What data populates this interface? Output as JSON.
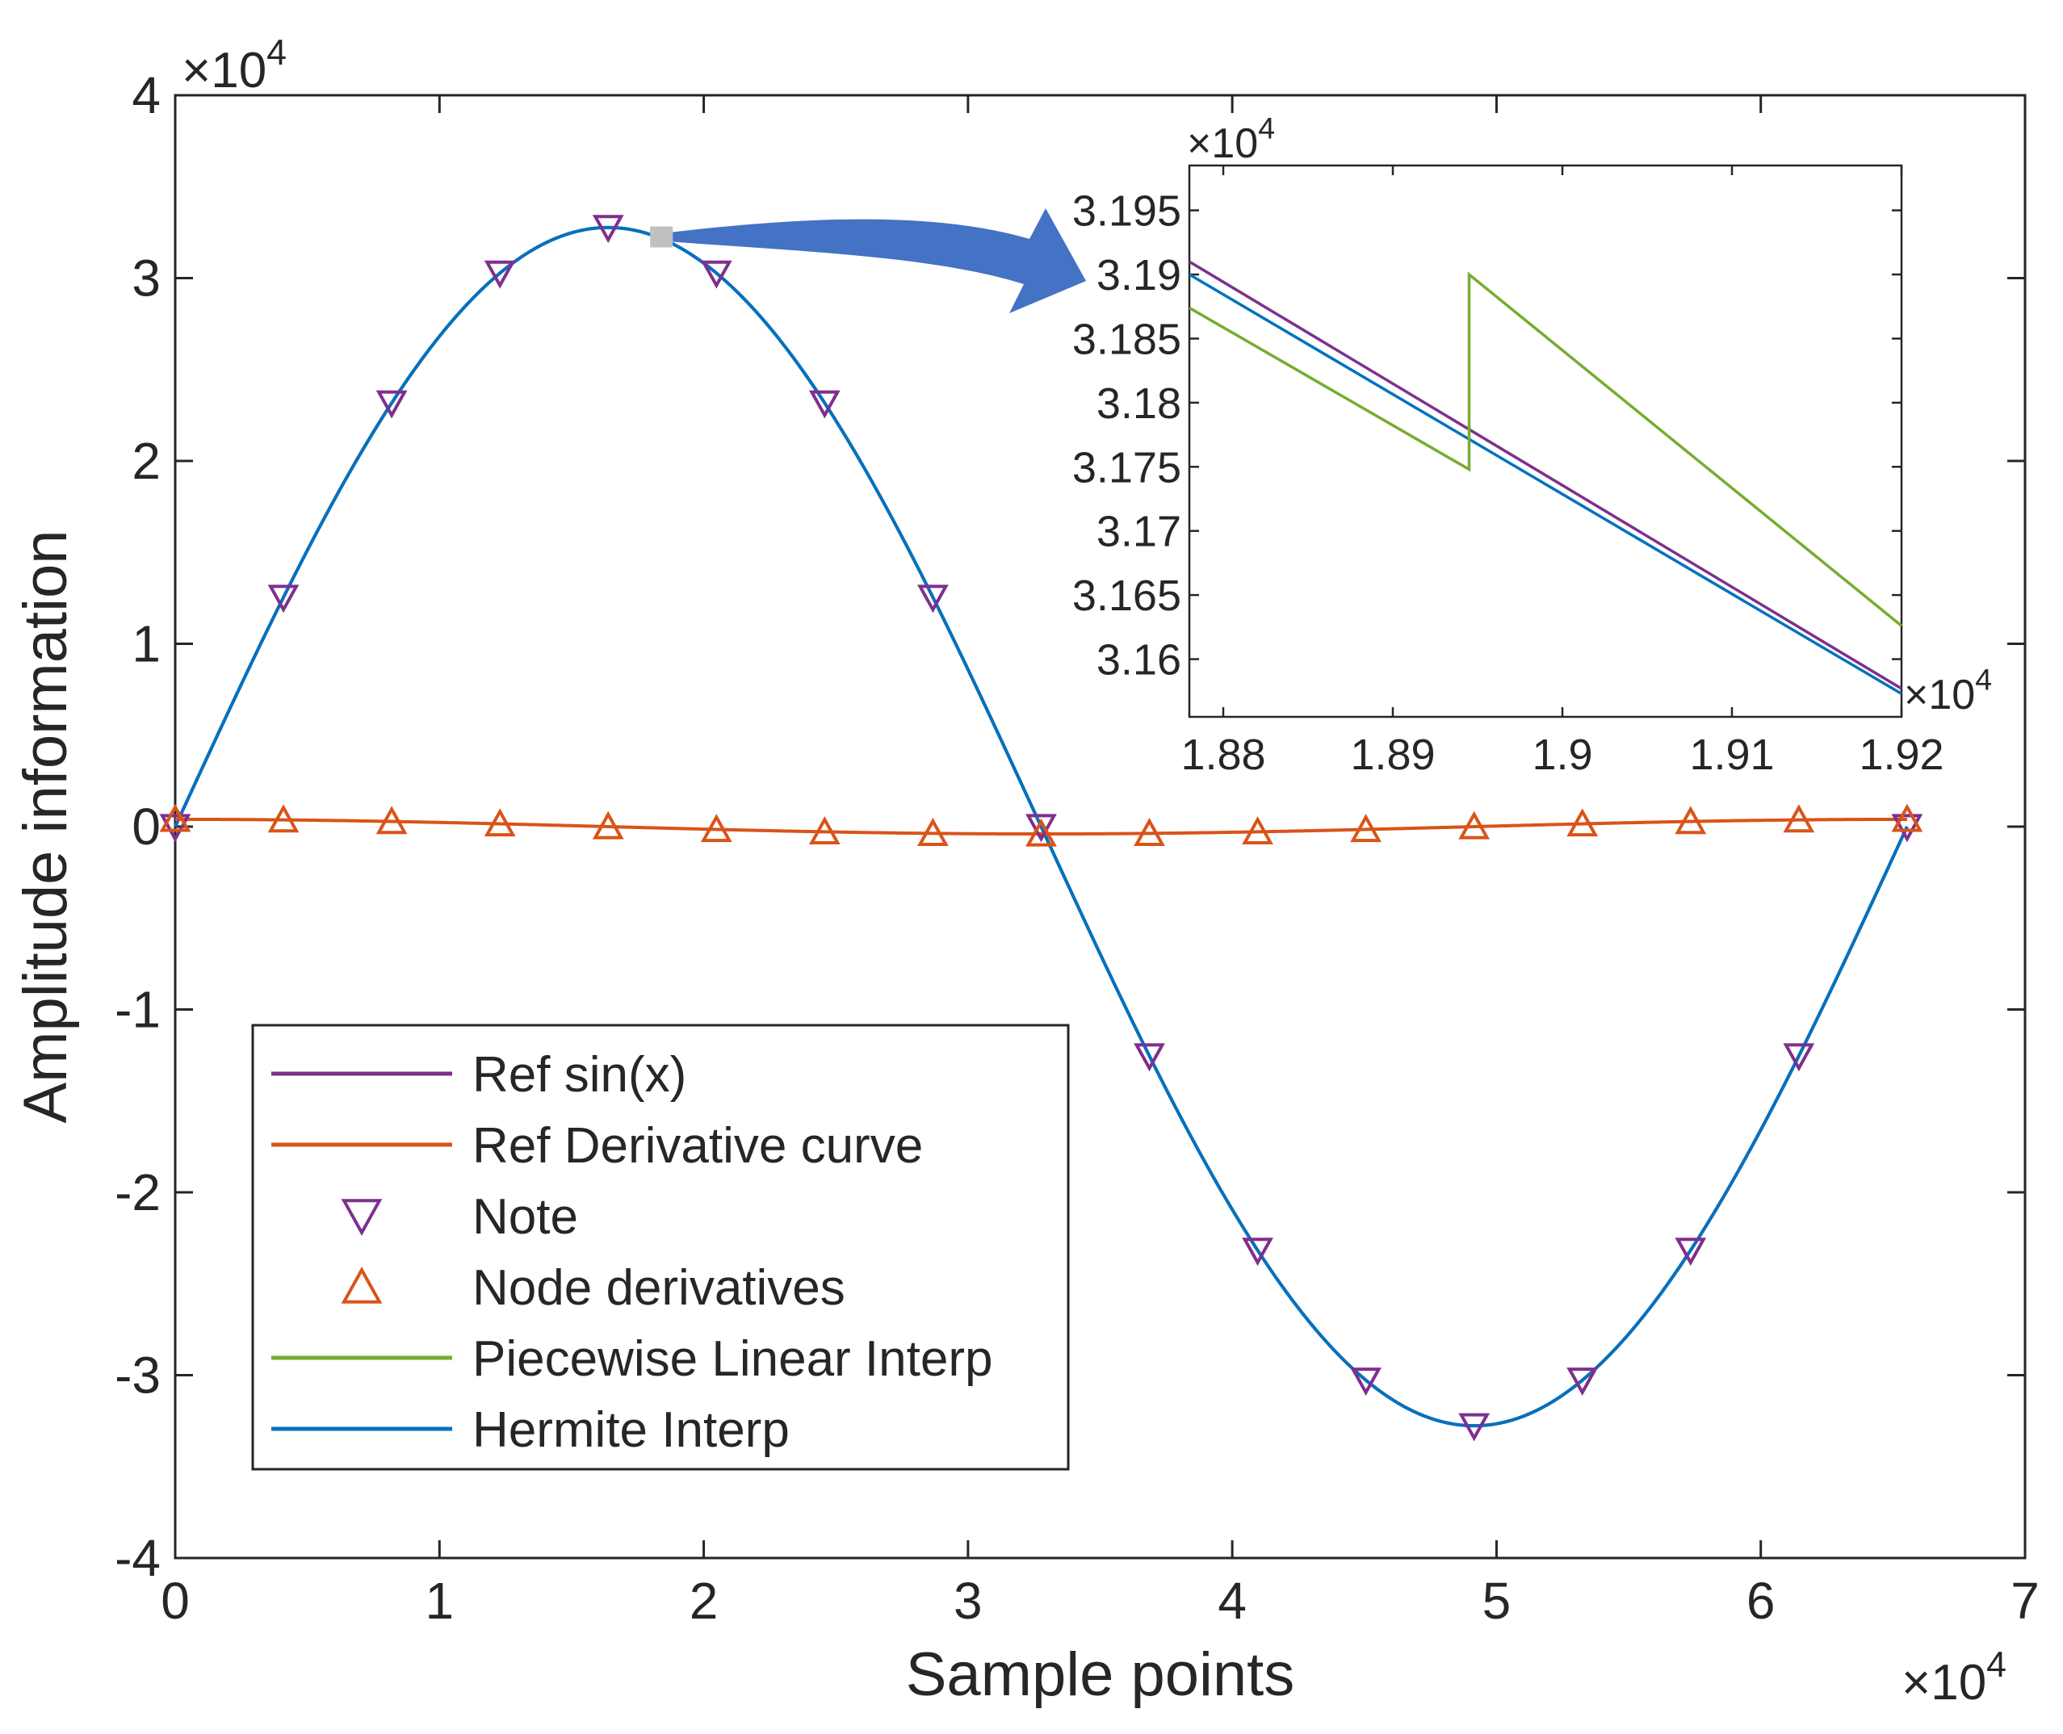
{
  "chart_data": [
    {
      "type": "line",
      "title": "",
      "xlabel": "Sample points",
      "ylabel": "Amplitude information",
      "xlim": [
        0,
        70000
      ],
      "ylim": [
        -40000,
        40000
      ],
      "x_exponent_label": "×10",
      "x_exponent_sup": "4",
      "y_exponent_label": "×10",
      "y_exponent_sup": "4",
      "xticks": [
        0,
        10000,
        20000,
        30000,
        40000,
        50000,
        60000,
        70000
      ],
      "xtick_labels": [
        "0",
        "1",
        "2",
        "3",
        "4",
        "5",
        "6",
        "7"
      ],
      "yticks": [
        -40000,
        -30000,
        -20000,
        -10000,
        0,
        10000,
        20000,
        30000,
        40000
      ],
      "ytick_labels": [
        "-4",
        "-3",
        "-2",
        "-1",
        "0",
        "1",
        "2",
        "3",
        "4"
      ],
      "grid": false,
      "legend_position": "bottom-left",
      "legend": [
        {
          "label": "Ref sin(x)",
          "kind": "line",
          "color": "#7E2F8E"
        },
        {
          "label": "Ref Derivative curve",
          "kind": "line",
          "color": "#D95319"
        },
        {
          "label": "Note",
          "kind": "triangle-down",
          "color": "#7E2F8E"
        },
        {
          "label": "Node derivatives",
          "kind": "triangle-up",
          "color": "#D95319"
        },
        {
          "label": "Piecewise Linear Interp",
          "kind": "line",
          "color": "#77AC30"
        },
        {
          "label": "Hermite Interp",
          "kind": "line",
          "color": "#0072BD"
        }
      ],
      "series": [
        {
          "name": "Ref sin(x)",
          "color": "#7E2F8E",
          "function": "A*sin(2*pi*x/N)",
          "amplitude": 32767,
          "period": 65536
        },
        {
          "name": "Ref Derivative curve",
          "color": "#D95319",
          "function": "A*cos(2*pi*x/N)",
          "amplitude": 400,
          "period": 65536
        },
        {
          "name": "Note",
          "color": "#7E2F8E",
          "marker": "triangle-down",
          "x": [
            0,
            4096,
            8192,
            12288,
            16384,
            20480,
            24576,
            28672,
            32768,
            36864,
            40960,
            45056,
            49152,
            53248,
            57344,
            61440,
            65536
          ],
          "y": [
            0,
            12539,
            23170,
            30273,
            32767,
            30273,
            23170,
            12539,
            0,
            -12539,
            -23170,
            -30273,
            -32767,
            -30273,
            -23170,
            -12539,
            0
          ]
        },
        {
          "name": "Node derivatives",
          "color": "#D95319",
          "marker": "triangle-up",
          "x": [
            0,
            4096,
            8192,
            12288,
            16384,
            20480,
            24576,
            28672,
            32768,
            36864,
            40960,
            45056,
            49152,
            53248,
            57344,
            61440,
            65536
          ],
          "y": [
            400,
            370,
            283,
            153,
            0,
            -153,
            -283,
            -370,
            -400,
            -370,
            -283,
            -153,
            0,
            153,
            283,
            370,
            400
          ]
        },
        {
          "name": "Piecewise Linear Interp",
          "color": "#77AC30",
          "function": "linear between nodes"
        },
        {
          "name": "Hermite Interp",
          "color": "#0072BD",
          "function": "A*sin(2*pi*x/N)"
        }
      ],
      "zoom_marker_x": 18400,
      "zoom_marker_y": 32250
    },
    {
      "type": "line",
      "title": "",
      "role": "inset zoom",
      "xlim": [
        18780,
        19200
      ],
      "ylim": [
        31555,
        31985
      ],
      "x_exponent_label": "×10",
      "x_exponent_sup": "4",
      "y_exponent_label": "×10",
      "y_exponent_sup": "4",
      "xticks": [
        18800,
        18900,
        19000,
        19100,
        19200
      ],
      "xtick_labels": [
        "1.88",
        "1.89",
        "1.9",
        "1.91",
        "1.92"
      ],
      "yticks": [
        31600,
        31650,
        31700,
        31750,
        31800,
        31850,
        31900,
        31950
      ],
      "ytick_labels": [
        "3.16",
        "3.165",
        "3.17",
        "3.175",
        "3.18",
        "3.185",
        "3.19",
        "3.195"
      ],
      "series": [
        {
          "name": "Ref sin(x)",
          "color": "#7E2F8E",
          "x": [
            18780,
            19200
          ],
          "y": [
            31910,
            31577
          ]
        },
        {
          "name": "Hermite Interp",
          "color": "#0072BD",
          "x": [
            18780,
            19200
          ],
          "y": [
            31900,
            31573
          ]
        },
        {
          "name": "Piecewise Linear Interp",
          "color": "#77AC30",
          "x": [
            18780,
            18945,
            18945,
            19200
          ],
          "y": [
            31874,
            31748,
            31900,
            31626
          ]
        }
      ]
    }
  ]
}
